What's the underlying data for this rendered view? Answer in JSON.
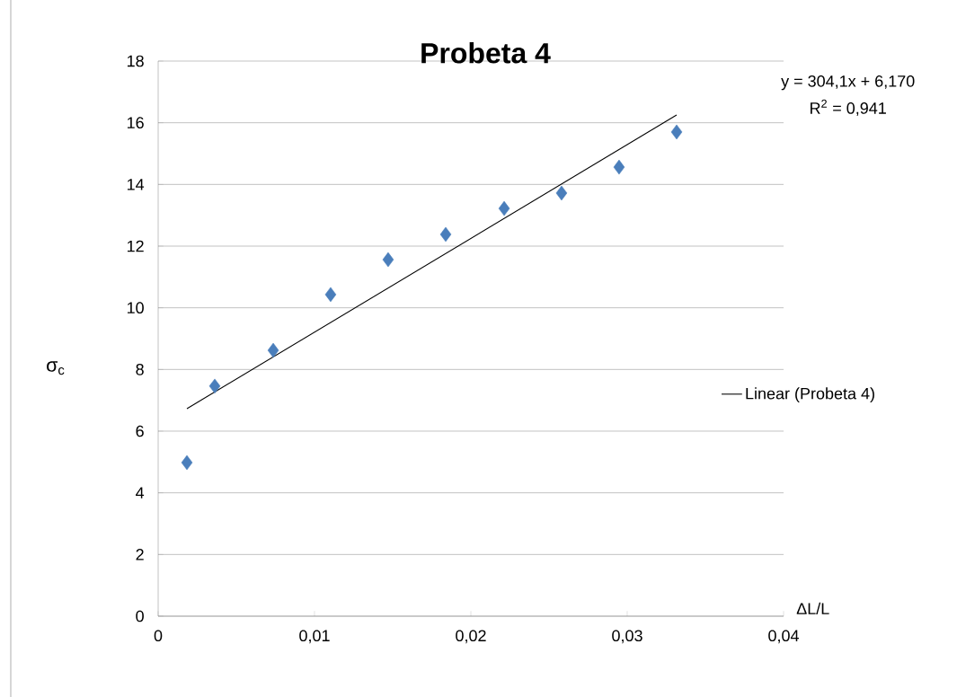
{
  "chart_data": {
    "type": "scatter",
    "title": "Probeta 4",
    "xlabel": "ΔL/L",
    "ylabel": "σ$_{c}$",
    "annotations": [
      "y = 304,1x + 6,170",
      "R$^{2}$ = 0,941"
    ],
    "xlim": [
      0,
      0.04
    ],
    "ylim": [
      0,
      18
    ],
    "xticks": [
      0,
      {
        "value": 0.01,
        "label": "0,01"
      },
      {
        "value": 0.02,
        "label": "0,02"
      },
      {
        "value": 0.03,
        "label": "0,03"
      },
      {
        "value": 0.04,
        "label": "0,04"
      }
    ],
    "yticks": [
      0,
      2,
      4,
      6,
      8,
      10,
      12,
      14,
      16,
      18
    ],
    "grid": "y",
    "legend": "right",
    "series": [
      {
        "color": "#4a7ebb",
        "marker": "diamond",
        "x": [
          0.00184,
          0.00362,
          0.00736,
          0.01103,
          0.01471,
          0.01839,
          0.02213,
          0.0258,
          0.02948,
          0.03316
        ],
        "values": [
          4.98,
          7.46,
          8.62,
          10.43,
          11.56,
          12.38,
          13.22,
          13.72,
          14.56,
          15.7
        ]
      },
      {
        "type": "line",
        "name": "Linear (Probeta 4)",
        "color": "#000000",
        "line_style": "solid",
        "x": [
          0.00184,
          0.03316
        ],
        "values": [
          6.73,
          16.25
        ]
      }
    ]
  }
}
